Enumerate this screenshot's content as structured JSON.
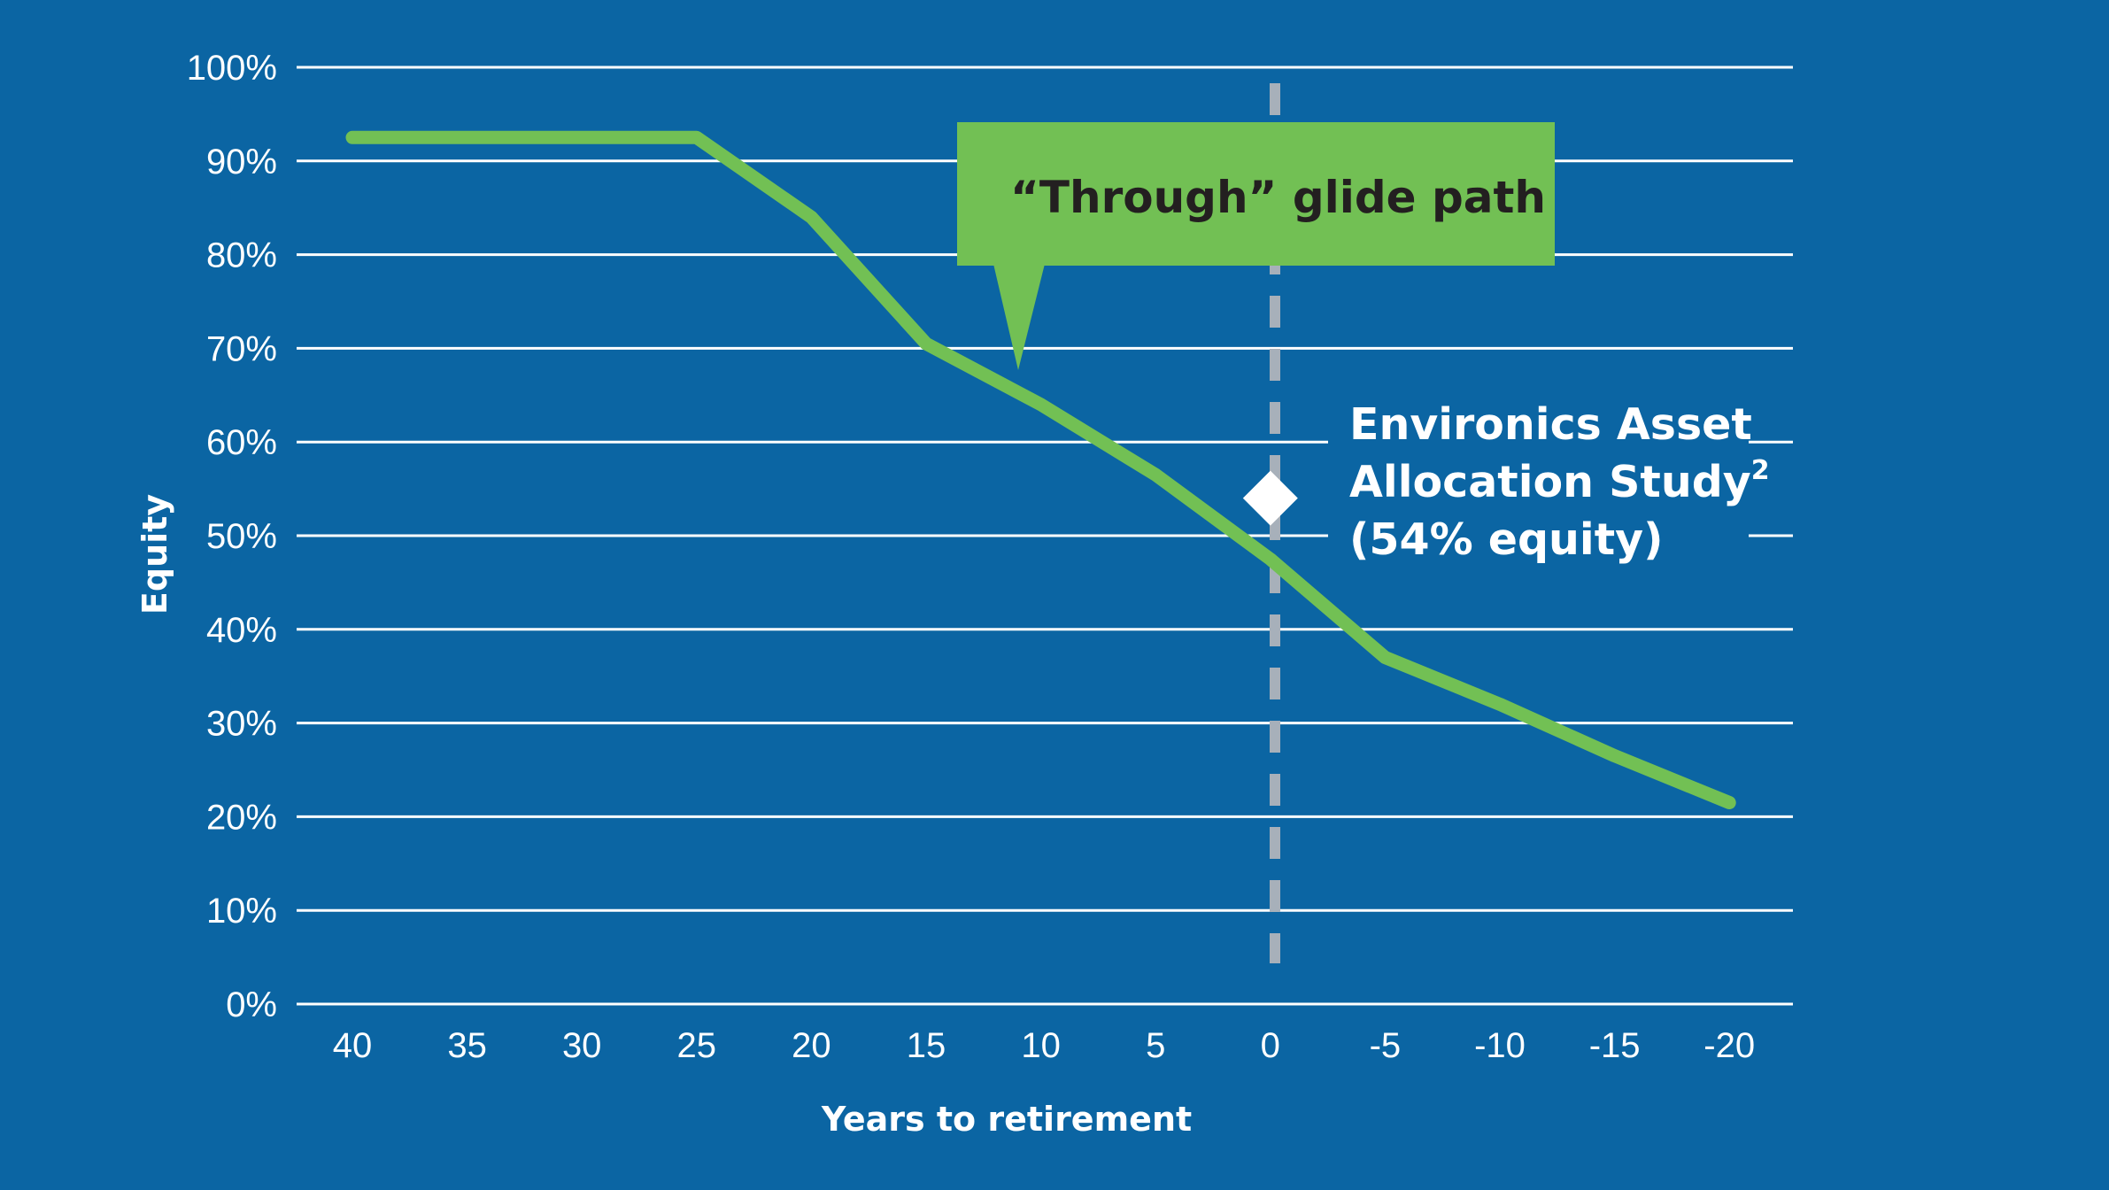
{
  "colors": {
    "background": "#0b65a3",
    "gridline": "#ffffff",
    "series": "#72c054",
    "callout_fill": "#72c054",
    "callout_text": "#231f20",
    "retirement_line": "#a7b0ba",
    "marker": "#ffffff"
  },
  "chart_data": {
    "type": "line",
    "title": "",
    "xlabel": "Years to retirement",
    "ylabel": "Equity",
    "ylim": [
      0,
      100
    ],
    "xlim": [
      40,
      -20
    ],
    "grid": "horizontal",
    "y_ticks": [
      "100%",
      "90%",
      "80%",
      "70%",
      "60%",
      "50%",
      "40%",
      "30%",
      "20%",
      "10%",
      "0%"
    ],
    "x_ticks": [
      "40",
      "35",
      "30",
      "25",
      "20",
      "15",
      "10",
      "5",
      "0",
      "-5",
      "-10",
      "-15",
      "-20"
    ],
    "series": [
      {
        "name": "“Through” glide path",
        "x": [
          40,
          25,
          20,
          15,
          10,
          5,
          0,
          -5,
          -10,
          -15,
          -20
        ],
        "values": [
          92.5,
          92.5,
          84,
          70.5,
          64,
          56.5,
          47.5,
          37,
          32,
          26.5,
          21.5
        ]
      }
    ],
    "annotations": [
      {
        "type": "callout",
        "text": "“Through” glide path",
        "points_to_x": 12
      },
      {
        "type": "vline",
        "x": 0,
        "style": "dashed",
        "meaning": "retirement"
      },
      {
        "type": "marker",
        "shape": "diamond",
        "x": 0,
        "y": 54,
        "label": "Environics Asset Allocation Study² (54% equity)"
      }
    ]
  },
  "labels": {
    "y_axis_title": "Equity",
    "x_axis_title": "Years to retirement",
    "callout": "“Through” glide path",
    "study_line1": "Environics Asset",
    "study_line2": "Allocation Study",
    "study_superscript": "2",
    "study_line3": "(54% equity)"
  }
}
